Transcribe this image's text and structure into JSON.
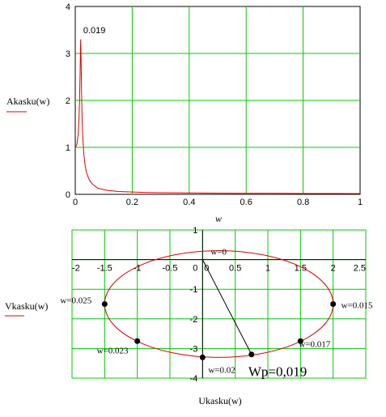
{
  "chart_data": [
    {
      "type": "line",
      "ylabel": "Akasku(w)",
      "xlabel": "w",
      "xlim": [
        0,
        1
      ],
      "ylim": [
        0,
        4
      ],
      "x_ticks": [
        "0",
        "0.2",
        "0.4",
        "0.6",
        "0.8",
        "1"
      ],
      "y_ticks": [
        "0",
        "1",
        "2",
        "3",
        "4"
      ],
      "grid": true,
      "annotation": "0.019",
      "series": [
        {
          "color": "#dd0000",
          "x": [
            0,
            0.005,
            0.01,
            0.013,
            0.015,
            0.017,
            0.018,
            0.019,
            0.02,
            0.021,
            0.022,
            0.024,
            0.026,
            0.03,
            0.035,
            0.04,
            0.05,
            0.06,
            0.07,
            0.08,
            0.1,
            0.12,
            0.15,
            0.2,
            0.25,
            0.3,
            0.4,
            0.5,
            0.6,
            0.7,
            0.8,
            0.9,
            1.0
          ],
          "y": [
            1.0,
            1.05,
            1.25,
            1.6,
            2.0,
            2.6,
            2.95,
            3.3,
            3.05,
            2.65,
            2.25,
            1.65,
            1.25,
            0.85,
            0.6,
            0.45,
            0.3,
            0.22,
            0.17,
            0.13,
            0.1,
            0.08,
            0.06,
            0.05,
            0.04,
            0.035,
            0.03,
            0.025,
            0.022,
            0.02,
            0.018,
            0.017,
            0.016
          ]
        }
      ]
    },
    {
      "type": "line",
      "ylabel": "Vkasku(w)",
      "xlabel": "Ukasku(w)",
      "xlim": [
        -2,
        2.5
      ],
      "ylim": [
        -4,
        1
      ],
      "x_ticks": [
        "-2",
        "-1.5",
        "-1",
        "-0.5",
        "0",
        "0.5",
        "1",
        "1.5",
        "2",
        "2.5"
      ],
      "y_ticks": [
        "1",
        "0",
        "-1",
        "-2",
        "-3",
        "-4"
      ],
      "grid": true,
      "ellipse": {
        "center": [
          0.25,
          -1.5
        ],
        "rx": 1.75,
        "ry": 1.8
      },
      "points": [
        {
          "label": "w=0",
          "x": 0,
          "y": 0
        },
        {
          "label": "w=0.015",
          "x": 2.0,
          "y": -1.5
        },
        {
          "label": "w=0.017",
          "x": 1.5,
          "y": -2.75
        },
        {
          "label": "w=0.02",
          "x": 0,
          "y": -3.3
        },
        {
          "label": "w=0.023",
          "x": -1.0,
          "y": -2.75
        },
        {
          "label": "w=0.025",
          "x": -1.5,
          "y": -1.5
        }
      ],
      "wp_point": {
        "label": "Wp=0,019",
        "x": 0.75,
        "y": -3.2
      }
    }
  ],
  "colors": {
    "grid": "#00cc00",
    "curve": "#dd0000",
    "axis": "#000000"
  }
}
